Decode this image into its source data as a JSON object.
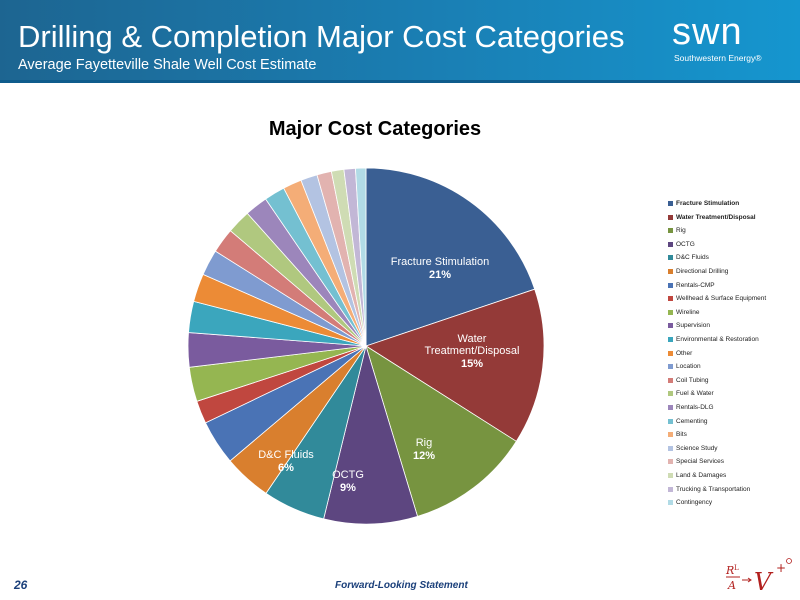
{
  "header": {
    "title": "Drilling & Completion Major Cost Categories",
    "subtitle": "Average Fayetteville Shale Well Cost Estimate",
    "logo_word": "swn",
    "logo_tagline": "Southwestern Energy®"
  },
  "footer": {
    "page_number": "26",
    "note": "Forward-Looking Statement"
  },
  "chart_data": {
    "type": "pie",
    "title": "Major Cost Categories",
    "legend_position": "right",
    "slices": [
      {
        "label": "Fracture Stimulation",
        "value": 21,
        "color": "#3a5f93",
        "data_label": "21%"
      },
      {
        "label": "Water Treatment/Disposal",
        "value": 15,
        "color": "#943a38",
        "data_label": "15%"
      },
      {
        "label": "Rig",
        "value": 12,
        "color": "#779440",
        "data_label": "12%"
      },
      {
        "label": "OCTG",
        "value": 9,
        "color": "#5d4680",
        "data_label": "9%"
      },
      {
        "label": "D&C Fluids",
        "value": 6,
        "color": "#318a9a",
        "data_label": "6%"
      },
      {
        "label": "Directional Drilling",
        "value": 4.6,
        "color": "#d97f2e",
        "data_label": ""
      },
      {
        "label": "Rentals-CMP",
        "value": 4.3,
        "color": "#4a73b5",
        "data_label": ""
      },
      {
        "label": "Wellhead & Surface Equipment",
        "value": 2.2,
        "color": "#c0473f",
        "data_label": ""
      },
      {
        "label": "Wireline",
        "value": 3.3,
        "color": "#95b651",
        "data_label": ""
      },
      {
        "label": "Supervision",
        "value": 3.3,
        "color": "#7a5b9e",
        "data_label": ""
      },
      {
        "label": "Environmental & Restoration",
        "value": 3.0,
        "color": "#3ba6bd",
        "data_label": ""
      },
      {
        "label": "Other",
        "value": 2.7,
        "color": "#ec8b36",
        "data_label": ""
      },
      {
        "label": "Location",
        "value": 2.5,
        "color": "#7f9bd0",
        "data_label": ""
      },
      {
        "label": "Coil Tubing",
        "value": 2.4,
        "color": "#d37c78",
        "data_label": ""
      },
      {
        "label": "Fuel & Water",
        "value": 2.3,
        "color": "#b0c87f",
        "data_label": ""
      },
      {
        "label": "Rentals-DLG",
        "value": 2.2,
        "color": "#9c86bb",
        "data_label": ""
      },
      {
        "label": "Cementing",
        "value": 2.0,
        "color": "#74c0d1",
        "data_label": ""
      },
      {
        "label": "Bits",
        "value": 1.8,
        "color": "#f4ad77",
        "data_label": ""
      },
      {
        "label": "Science Study",
        "value": 1.6,
        "color": "#b3c3e2",
        "data_label": ""
      },
      {
        "label": "Special Services",
        "value": 1.4,
        "color": "#e2b3b0",
        "data_label": ""
      },
      {
        "label": "Land & Damages",
        "value": 1.2,
        "color": "#cfdcb4",
        "data_label": ""
      },
      {
        "label": "Trucking & Transportation",
        "value": 1.1,
        "color": "#c2b7d6",
        "data_label": ""
      },
      {
        "label": "Contingency",
        "value": 1.0,
        "color": "#b1dbe6",
        "data_label": ""
      }
    ]
  }
}
